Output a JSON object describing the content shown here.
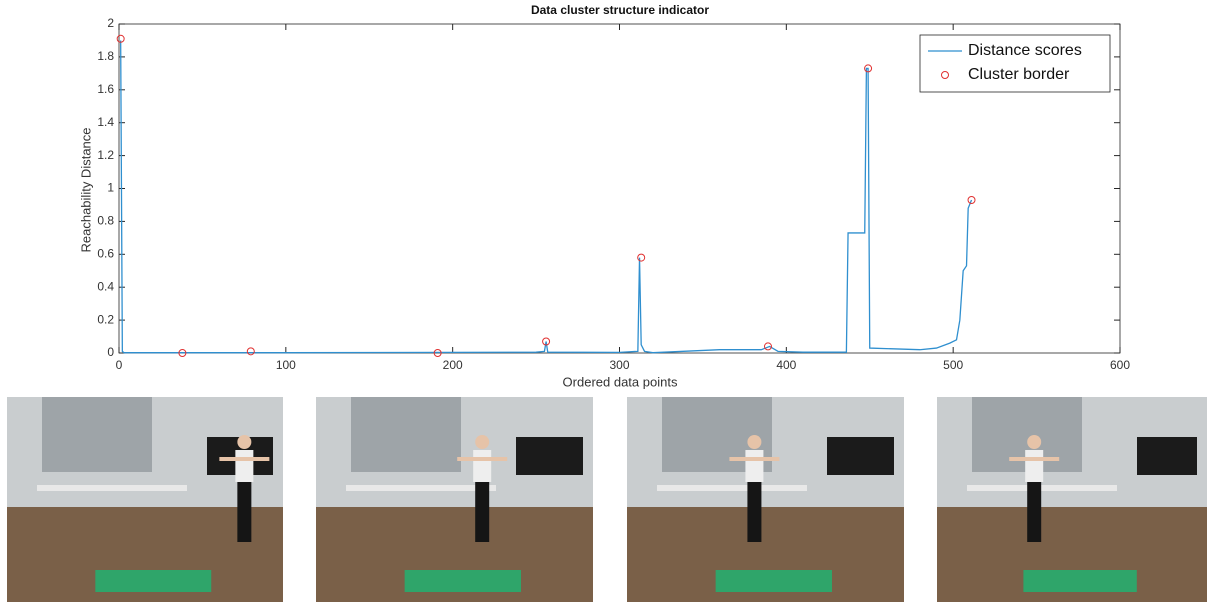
{
  "chart_data": {
    "type": "line",
    "title": "Data cluster structure indicator",
    "xlabel": "Ordered data points",
    "ylabel": "Reachability Distance",
    "xlim": [
      0,
      600
    ],
    "xticks": [
      0,
      100,
      200,
      300,
      400,
      500,
      600
    ],
    "ylim": [
      0,
      2
    ],
    "yticks": [
      0,
      0.2,
      0.4,
      0.6,
      0.8,
      1,
      1.2,
      1.4,
      1.6,
      1.8,
      2
    ],
    "legend": "top-right",
    "series": [
      {
        "name": "Distance scores",
        "color": "#2f8fcf",
        "style": "line",
        "x": [
          1,
          2,
          3,
          100,
          250,
          255,
          256,
          257,
          300,
          311,
          312,
          313,
          315,
          320,
          360,
          385,
          390,
          395,
          410,
          436,
          437,
          447,
          448,
          449,
          450,
          480,
          490,
          498,
          502,
          504,
          506,
          508,
          509,
          511
        ],
        "values": [
          1.9,
          0.01,
          0.002,
          0.002,
          0.005,
          0.01,
          0.07,
          0.005,
          0.004,
          0.01,
          0.58,
          0.05,
          0.01,
          0.002,
          0.02,
          0.02,
          0.04,
          0.01,
          0.005,
          0.005,
          0.73,
          0.73,
          1.73,
          1.73,
          0.03,
          0.02,
          0.03,
          0.06,
          0.08,
          0.2,
          0.5,
          0.53,
          0.88,
          0.93
        ]
      },
      {
        "name": "Cluster border",
        "color": "#e03030",
        "style": "marker",
        "x": [
          1,
          38,
          79,
          191,
          256,
          313,
          389,
          449,
          511
        ],
        "values": [
          1.91,
          0.0,
          0.01,
          0.0,
          0.07,
          0.58,
          0.04,
          1.73,
          0.93
        ]
      }
    ]
  }
}
